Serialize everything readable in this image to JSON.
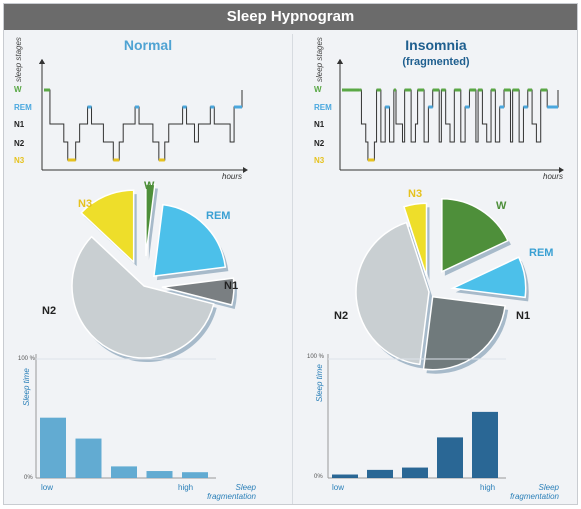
{
  "title": "Sleep Hypnogram",
  "stages": [
    "W",
    "REM",
    "N1",
    "N2",
    "N3"
  ],
  "stage_colors": {
    "W": "#5aa845",
    "REM": "#4aa8df",
    "N1": "#222222",
    "N2": "#222222",
    "N3": "#e6c21e"
  },
  "hypnogram_ylabel": "sleep stages",
  "hypnogram_xlabel": "hours",
  "bar_ylabel": "Sleep time",
  "bar_top_tick": "100 %",
  "bar_bottom_tick": "0%",
  "bar_x_low": "low",
  "bar_x_high": "high",
  "bar_x_axis": "Sleep fragmentation",
  "normal": {
    "title": "Normal",
    "subtitle": "",
    "pie": [
      {
        "label": "W",
        "value": 2,
        "color": "#4e8f3a"
      },
      {
        "label": "REM",
        "value": 21,
        "color": "#4cc0ea"
      },
      {
        "label": "N1",
        "value": 6,
        "color": "#7a7f82"
      },
      {
        "label": "N2",
        "value": 58,
        "color": "#c9cfd2"
      },
      {
        "label": "N3",
        "value": 13,
        "color": "#eede2a"
      }
    ],
    "bars": [
      52,
      34,
      10,
      6,
      5
    ],
    "bar_color": "#5aa6d0",
    "hypnogram": [
      [
        "W",
        0.1
      ],
      [
        "N1",
        0.3
      ],
      [
        "N2",
        1.0
      ],
      [
        "N3",
        1.2
      ],
      [
        "N2",
        1.6
      ],
      [
        "N1",
        1.8
      ],
      [
        "REM",
        2.2
      ],
      [
        "N1",
        2.4
      ],
      [
        "N2",
        3.0
      ],
      [
        "N3",
        3.5
      ],
      [
        "N2",
        3.8
      ],
      [
        "N1",
        4.0
      ],
      [
        "REM",
        4.6
      ],
      [
        "N1",
        4.8
      ],
      [
        "N2",
        5.5
      ],
      [
        "N3",
        5.8
      ],
      [
        "N2",
        6.1
      ],
      [
        "N1",
        6.3
      ],
      [
        "REM",
        7.0
      ],
      [
        "N1",
        7.2
      ],
      [
        "N2",
        7.6
      ],
      [
        "N1",
        7.8
      ],
      [
        "REM",
        8.4
      ],
      [
        "N1",
        8.6
      ],
      [
        "N2",
        9.4
      ],
      [
        "REM",
        9.6
      ],
      [
        "W",
        10.0
      ]
    ]
  },
  "insomnia": {
    "title": "Insomnia",
    "subtitle": "(fragmented)",
    "pie": [
      {
        "label": "W",
        "value": 18,
        "color": "#4e8f3a"
      },
      {
        "label": "REM",
        "value": 9,
        "color": "#4cc0ea"
      },
      {
        "label": "N1",
        "value": 25,
        "color": "#707a7c"
      },
      {
        "label": "N2",
        "value": 43,
        "color": "#c9cfd2"
      },
      {
        "label": "N3",
        "value": 5,
        "color": "#eede2a"
      }
    ],
    "bars": [
      3,
      7,
      9,
      35,
      57
    ],
    "bar_color": "#1f5f8f",
    "hypnogram": [
      [
        "W",
        0.8
      ],
      [
        "N1",
        0.9
      ],
      [
        "N2",
        1.1
      ],
      [
        "N3",
        1.2
      ],
      [
        "N2",
        1.5
      ],
      [
        "W",
        1.6
      ],
      [
        "N2",
        1.8
      ],
      [
        "REM",
        2.0
      ],
      [
        "N2",
        2.2
      ],
      [
        "W",
        2.4
      ],
      [
        "N1",
        2.5
      ],
      [
        "N2",
        2.8
      ],
      [
        "W",
        2.9
      ],
      [
        "N2",
        3.2
      ],
      [
        "N1",
        3.4
      ],
      [
        "W",
        3.5
      ],
      [
        "N2",
        3.8
      ],
      [
        "REM",
        4.0
      ],
      [
        "W",
        4.2
      ],
      [
        "N2",
        4.5
      ],
      [
        "W",
        4.6
      ],
      [
        "N1",
        4.8
      ],
      [
        "N2",
        5.0
      ],
      [
        "W",
        5.2
      ],
      [
        "N2",
        5.5
      ],
      [
        "REM",
        5.7
      ],
      [
        "W",
        5.9
      ],
      [
        "N2",
        6.2
      ],
      [
        "W",
        6.3
      ],
      [
        "N1",
        6.5
      ],
      [
        "N2",
        6.7
      ],
      [
        "W",
        6.9
      ],
      [
        "N2",
        7.1
      ],
      [
        "REM",
        7.3
      ],
      [
        "W",
        7.5
      ],
      [
        "N2",
        7.8
      ],
      [
        "W",
        7.9
      ],
      [
        "N2",
        8.2
      ],
      [
        "REM",
        8.4
      ],
      [
        "W",
        8.6
      ],
      [
        "N1",
        8.8
      ],
      [
        "N2",
        9.0
      ],
      [
        "W",
        9.2
      ],
      [
        "REM",
        9.5
      ],
      [
        "W",
        10.0
      ]
    ]
  }
}
